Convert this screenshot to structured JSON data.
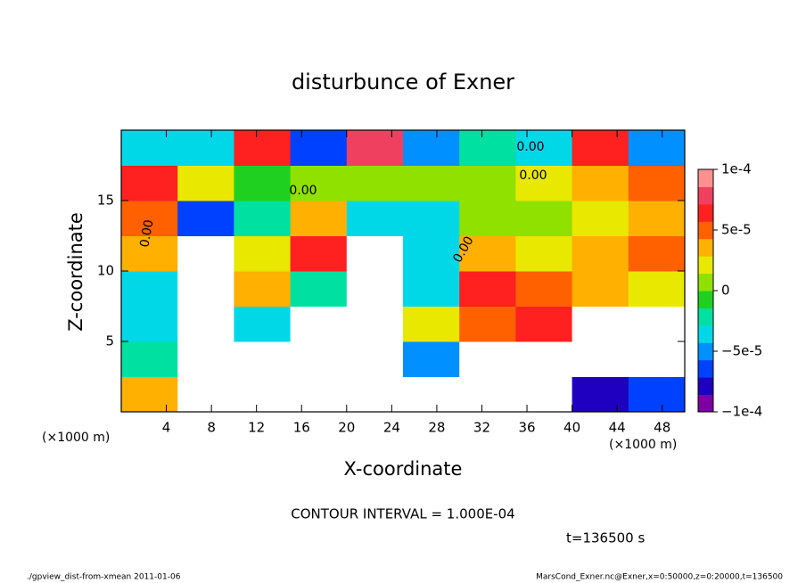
{
  "chart_data": {
    "type": "heatmap",
    "title": "disturbunce of Exner",
    "xlabel": "X-coordinate",
    "ylabel": "Z-coordinate",
    "x_unit": "(×1000 m)",
    "xlim": [
      0,
      50
    ],
    "ylim": [
      0,
      20
    ],
    "xticks": [
      4,
      8,
      12,
      16,
      20,
      24,
      28,
      32,
      36,
      40,
      44,
      48
    ],
    "yticks": [
      5,
      10,
      15
    ],
    "xbins": [
      0,
      5,
      10,
      15,
      20,
      25,
      30,
      35,
      40,
      45,
      50
    ],
    "ybins": [
      0,
      2.5,
      5,
      7.5,
      10,
      12.5,
      15,
      17.5,
      20
    ],
    "values": [
      [
        3e-05,
        -0.00015,
        -0.00015,
        -0.00015,
        -0.00015,
        -0.00012,
        -0.00015,
        -0.00015,
        -8e-05,
        -6e-05
      ],
      [
        -2e-05,
        -0.00015,
        -0.00015,
        -0.00015,
        -0.00015,
        -5e-05,
        -0.00015,
        -0.00015,
        -0.00015,
        -0.00015
      ],
      [
        -4e-05,
        -0.00015,
        -3e-05,
        -0.00015,
        -0.00015,
        2e-05,
        5e-05,
        6e-05,
        -0.00015,
        -0.00012
      ],
      [
        -3e-05,
        -0.00015,
        4e-05,
        -2e-05,
        -0.00015,
        -3e-05,
        6e-05,
        5e-05,
        4e-05,
        2e-05
      ],
      [
        3e-05,
        -0.00015,
        2e-05,
        6e-05,
        -0.00015,
        -4e-05,
        3e-05,
        2e-05,
        4e-05,
        5e-05
      ],
      [
        5e-05,
        -6e-05,
        -2e-05,
        4e-05,
        -4e-05,
        -3e-05,
        1e-05,
        1e-05,
        2e-05,
        4e-05
      ],
      [
        6e-05,
        2e-05,
        -1e-05,
        1e-05,
        0,
        1e-05,
        1e-05,
        2e-05,
        3e-05,
        5e-05
      ],
      [
        -4e-05,
        -3e-05,
        7e-05,
        -6e-05,
        8e-05,
        -5e-05,
        -2e-05,
        -3e-05,
        6e-05,
        -5e-05
      ]
    ],
    "clim": [
      -0.0001,
      0.0001
    ],
    "cticks": [
      {
        "value": -0.0001,
        "label": "−1e-4"
      },
      {
        "value": -5e-05,
        "label": "−5e-5"
      },
      0,
      {
        "value": 5e-05,
        "label": "5e-5"
      },
      {
        "value": 0.0001,
        "label": "1e-4"
      }
    ],
    "colors": [
      "#7f00a0",
      "#2000c0",
      "#0040ff",
      "#0090ff",
      "#00d8e8",
      "#00e0a0",
      "#20d020",
      "#90e000",
      "#e8e800",
      "#ffb000",
      "#ff6000",
      "#ff2020",
      "#f04060",
      "#ff9090"
    ],
    "under_color": "#ffffff",
    "contour_labels": [
      "0.00",
      "0.00",
      "0.00",
      "0.00",
      "0.00"
    ],
    "contour_interval": "CONTOUR INTERVAL = 1.000E-04",
    "time_label": "t=136500 s",
    "footer_left": "./gpview_dist-from-xmean  2011-01-06",
    "footer_right": "MarsCond_Exner.nc@Exner,x=0:50000,z=0:20000,t=136500"
  }
}
